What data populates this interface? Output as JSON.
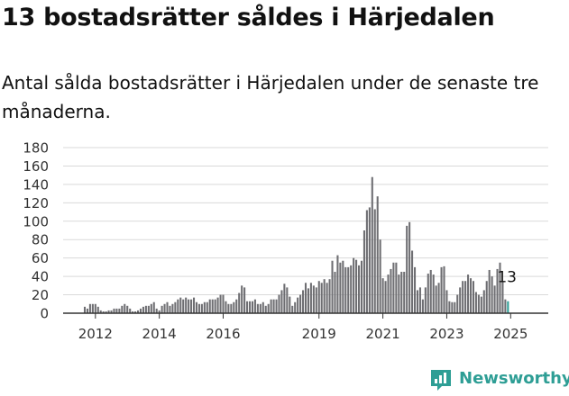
{
  "title": "13 bostadsrätter såldes i Härjedalen",
  "subtitle": "Antal sålda bostadsrätter i Härjedalen under de senaste tre månaderna.",
  "brand": {
    "name": "Newsworthy",
    "icon": "newsworthy-logo-icon",
    "color": "#2e9e95"
  },
  "chart_data": {
    "type": "bar",
    "title": "",
    "xlabel": "",
    "ylabel": "",
    "ylim": [
      0,
      180
    ],
    "yticks": [
      0,
      20,
      40,
      60,
      80,
      100,
      120,
      140,
      160,
      180
    ],
    "xtick_labels": [
      "2012",
      "2014",
      "2016",
      "2019",
      "2021",
      "2023",
      "2025"
    ],
    "grid": true,
    "bar_color": "#6e6e72",
    "highlight_color": "#2e9e95",
    "start": "2011-09",
    "end": "2025-07",
    "values": [
      7,
      5,
      10,
      10,
      10,
      7,
      3,
      2,
      2,
      3,
      3,
      5,
      5,
      5,
      8,
      10,
      8,
      5,
      2,
      2,
      3,
      5,
      7,
      8,
      8,
      10,
      12,
      5,
      3,
      8,
      10,
      12,
      8,
      10,
      12,
      15,
      17,
      15,
      17,
      15,
      15,
      17,
      12,
      10,
      10,
      12,
      12,
      15,
      15,
      15,
      17,
      20,
      20,
      13,
      10,
      10,
      12,
      15,
      22,
      30,
      28,
      13,
      13,
      13,
      15,
      10,
      10,
      12,
      8,
      10,
      15,
      15,
      15,
      20,
      25,
      32,
      28,
      18,
      8,
      12,
      17,
      20,
      25,
      33,
      27,
      33,
      30,
      28,
      35,
      33,
      37,
      33,
      37,
      57,
      45,
      63,
      55,
      57,
      50,
      50,
      52,
      60,
      58,
      52,
      57,
      90,
      112,
      115,
      148,
      113,
      127,
      80,
      38,
      35,
      42,
      48,
      55,
      55,
      42,
      45,
      45,
      95,
      99,
      68,
      50,
      25,
      28,
      15,
      28,
      43,
      47,
      42,
      30,
      33,
      50,
      51,
      25,
      13,
      12,
      12,
      20,
      28,
      35,
      35,
      42,
      38,
      35,
      23,
      20,
      18,
      25,
      35,
      47,
      40,
      30,
      48,
      55,
      35,
      15,
      13
    ]
  }
}
